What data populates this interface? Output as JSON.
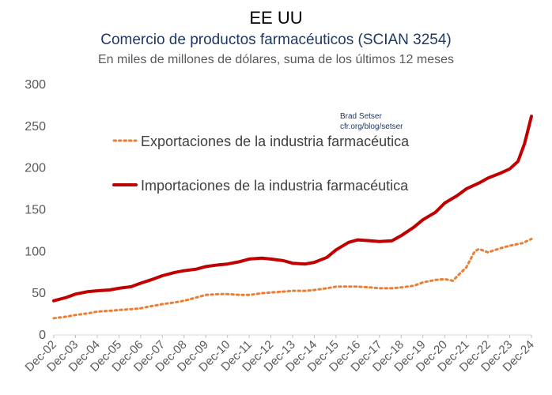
{
  "chart_data": {
    "type": "line",
    "title": "EE UU",
    "subtitle": "Comercio de productos farmacéuticos (SCIAN 3254)",
    "note": "En miles de millones de dólares, suma de los últimos 12 meses",
    "source": [
      "Brad Setser",
      "cfr.org/blog/setser"
    ],
    "xlabel": "",
    "ylabel": "",
    "ylim": [
      0,
      300
    ],
    "yticks": [
      0,
      50,
      100,
      150,
      200,
      250,
      300
    ],
    "grid": false,
    "legend_position": "top-left",
    "categories": [
      "Dec-02",
      "Dec-03",
      "Dec-04",
      "Dec-05",
      "Dec-06",
      "Dec-07",
      "Dec-08",
      "Dec-09",
      "Dec-10",
      "Dec-11",
      "Dec-12",
      "Dec-13",
      "Dec-14",
      "Dec-15",
      "Dec-16",
      "Dec-17",
      "Dec-18",
      "Dec-19",
      "Dec-20",
      "Dec-21",
      "Dec-22",
      "Dec-23",
      "Dec-24"
    ],
    "series": [
      {
        "name": "Exportaciones de la industria farmacéutica",
        "style": "dotted",
        "color": "#ed7d31",
        "x": [
          2002.92,
          2003.5,
          2003.92,
          2004.5,
          2004.92,
          2005.5,
          2005.92,
          2006.5,
          2006.92,
          2007.5,
          2007.92,
          2008.5,
          2008.92,
          2009.5,
          2009.92,
          2010.5,
          2010.92,
          2011.5,
          2011.92,
          2012.5,
          2012.92,
          2013.5,
          2013.92,
          2014.5,
          2014.92,
          2015.5,
          2015.92,
          2016.5,
          2016.92,
          2017.5,
          2017.92,
          2018.5,
          2018.92,
          2019.5,
          2019.92,
          2020.5,
          2020.92,
          2021.3,
          2021.6,
          2021.92,
          2022.3,
          2022.5,
          2022.92,
          2023.5,
          2023.92,
          2024.5,
          2024.92
        ],
        "values": [
          19,
          21,
          23,
          25,
          27,
          28,
          29,
          30,
          31,
          34,
          36,
          38,
          40,
          44,
          47,
          48,
          48,
          47,
          47,
          49,
          50,
          51,
          52,
          52,
          53,
          55,
          57,
          57,
          57,
          56,
          55,
          55,
          56,
          58,
          62,
          65,
          66,
          64,
          72,
          80,
          99,
          102,
          98,
          103,
          106,
          109,
          114
        ]
      },
      {
        "name": "Importaciones de la industria farmacéutica",
        "style": "solid",
        "color": "#c00000",
        "x": [
          2002.92,
          2003.5,
          2003.92,
          2004.5,
          2004.92,
          2005.5,
          2005.92,
          2006.5,
          2006.92,
          2007.5,
          2007.92,
          2008.5,
          2008.92,
          2009.5,
          2009.92,
          2010.5,
          2010.92,
          2011.5,
          2011.92,
          2012.5,
          2012.92,
          2013.5,
          2013.92,
          2014.5,
          2014.92,
          2015.5,
          2015.92,
          2016.5,
          2016.92,
          2017.5,
          2017.92,
          2018.5,
          2018.92,
          2019.5,
          2019.92,
          2020.5,
          2020.92,
          2021.5,
          2021.92,
          2022.5,
          2022.92,
          2023.5,
          2023.92,
          2024.3,
          2024.6,
          2024.92
        ],
        "values": [
          40,
          44,
          48,
          51,
          52,
          53,
          55,
          57,
          61,
          66,
          70,
          74,
          76,
          78,
          81,
          83,
          84,
          87,
          90,
          91,
          90,
          88,
          85,
          84,
          86,
          92,
          101,
          110,
          113,
          112,
          111,
          112,
          118,
          128,
          137,
          146,
          157,
          166,
          174,
          181,
          187,
          193,
          198,
          207,
          228,
          261
        ]
      }
    ]
  }
}
